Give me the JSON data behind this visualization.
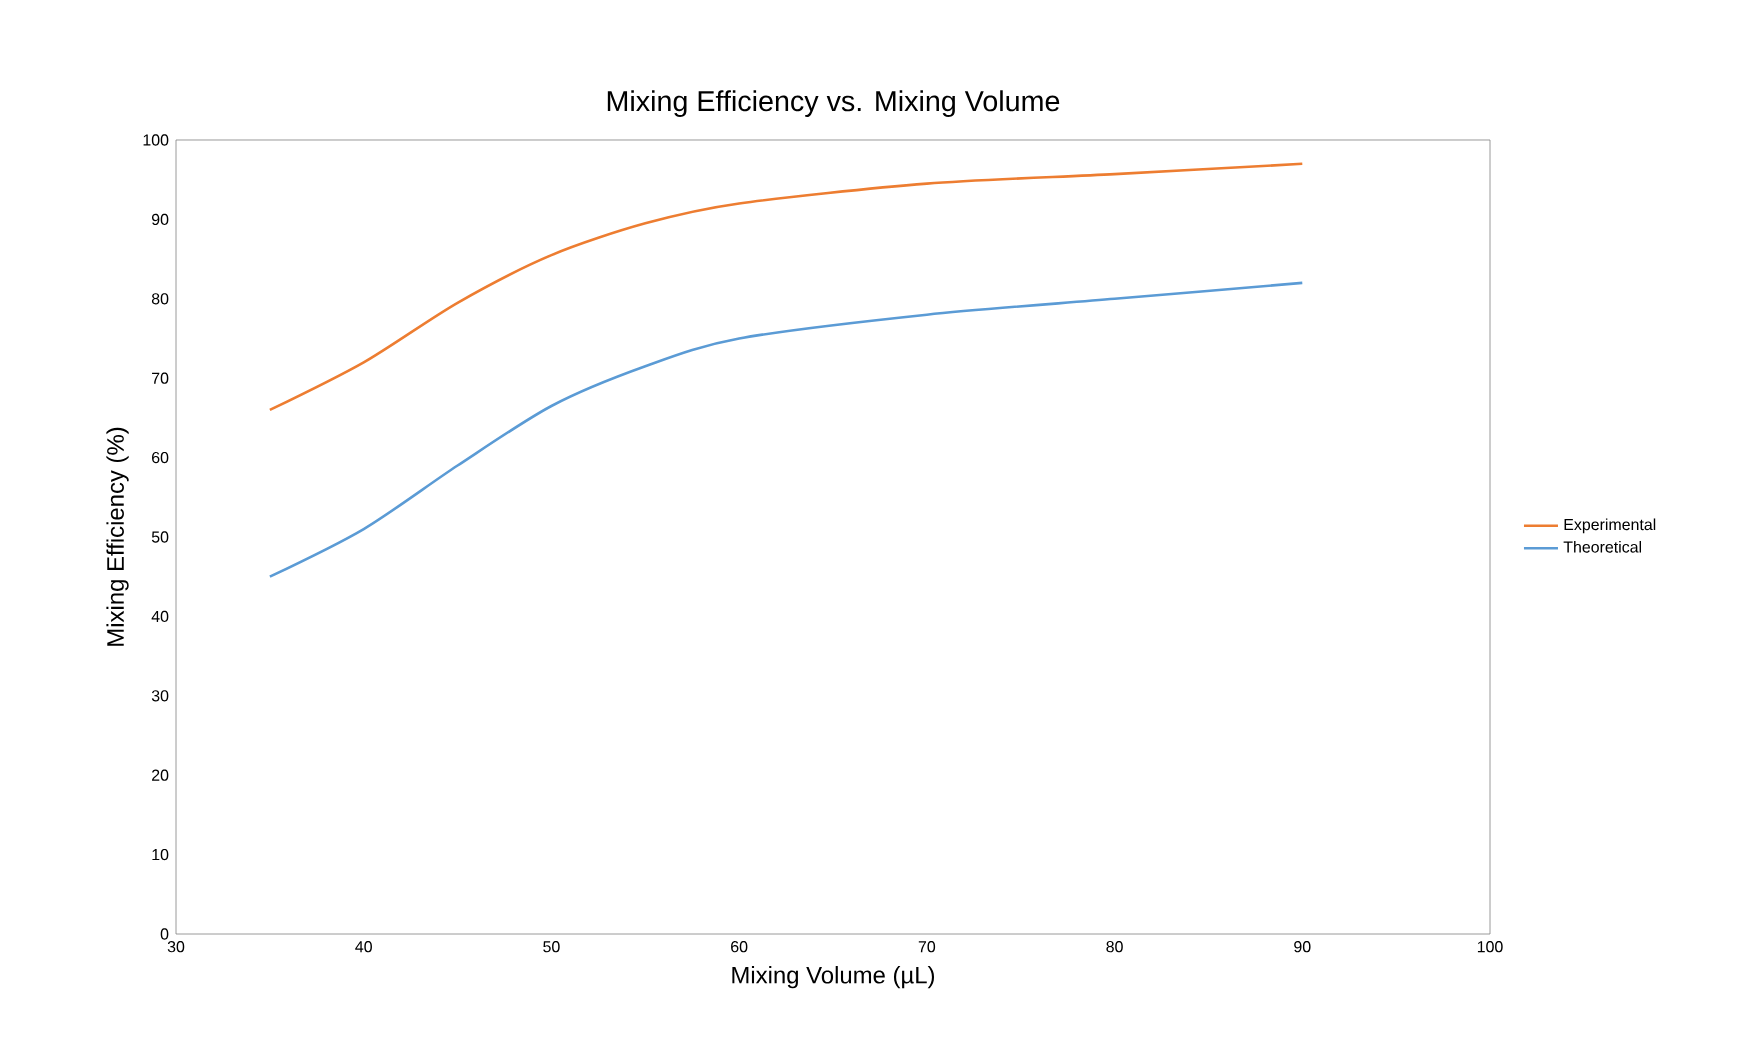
{
  "chart_data": {
    "type": "line",
    "title": "Mixing Efficiency vs. Mixing Volume",
    "xlabel": "Mixing Volume (µL)",
    "ylabel": "Mixing Efficiency (%)",
    "x": [
      35,
      40,
      45,
      50,
      55,
      60,
      70,
      80,
      90
    ],
    "series": [
      {
        "name": "Experimental",
        "color": "#ed7d31",
        "values": [
          66,
          72,
          79.5,
          85.5,
          89.5,
          92,
          94.5,
          95.7,
          97
        ]
      },
      {
        "name": "Theoretical",
        "color": "#5b9bd5",
        "values": [
          45,
          51,
          59,
          66.5,
          71.5,
          75,
          78,
          80,
          82
        ]
      }
    ],
    "xlim": [
      30,
      100
    ],
    "xticks": [
      30,
      40,
      50,
      60,
      70,
      80,
      90,
      100
    ],
    "ylim": [
      0,
      100
    ],
    "yticks": [
      0,
      10,
      20,
      30,
      40,
      50,
      60,
      70,
      80,
      90,
      100
    ],
    "grid": false,
    "legend": "right",
    "marker": "none",
    "line_style": "solid"
  }
}
